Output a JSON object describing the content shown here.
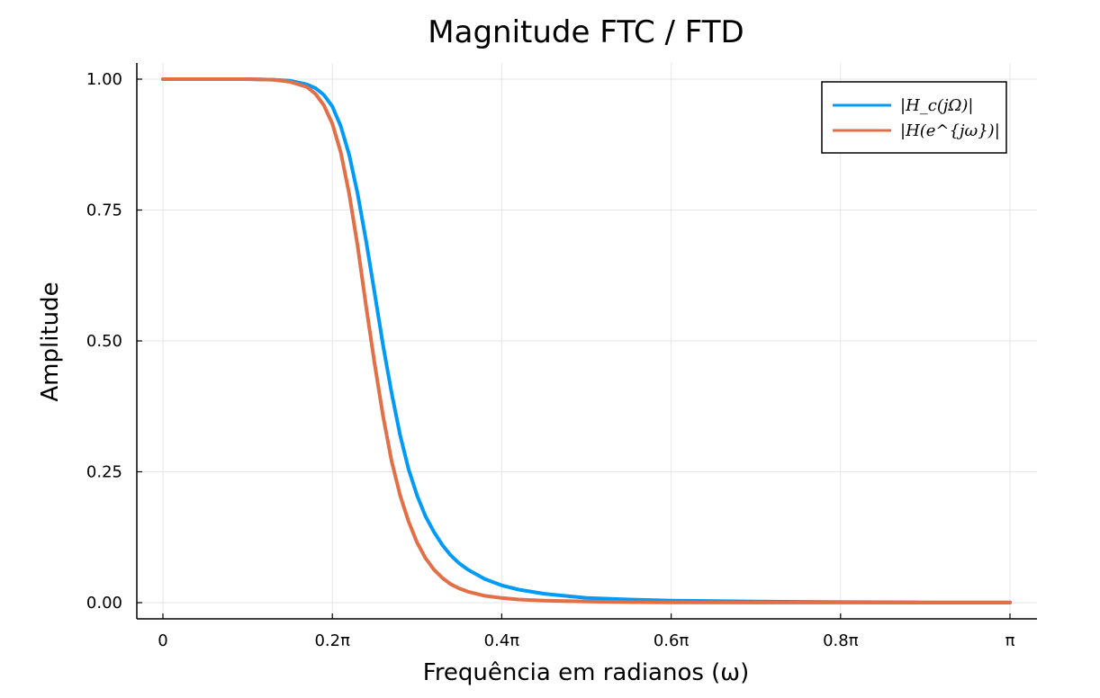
{
  "chart_data": {
    "type": "line",
    "title": "Magnitude FTC / FTD",
    "xlabel": "Frequência em radianos (ω)",
    "ylabel": "Amplitude",
    "x_unit": "π rad",
    "xlim": [
      0,
      1
    ],
    "ylim": [
      0,
      1
    ],
    "x_ticks": [
      0,
      0.2,
      0.4,
      0.6,
      0.8,
      1.0
    ],
    "x_tick_labels": [
      "0",
      "0.2π",
      "0.4π",
      "0.6π",
      "0.8π",
      "π"
    ],
    "y_ticks": [
      0,
      0.25,
      0.5,
      0.75,
      1.0
    ],
    "y_tick_labels": [
      "0.00",
      "0.25",
      "0.50",
      "0.75",
      "1.00"
    ],
    "grid": true,
    "legend_position": "top-right",
    "series": [
      {
        "name": "|H_c(jΩ)|",
        "color": "#009af9",
        "x": [
          0,
          0.05,
          0.1,
          0.13,
          0.15,
          0.17,
          0.18,
          0.19,
          0.2,
          0.21,
          0.22,
          0.23,
          0.24,
          0.25,
          0.26,
          0.27,
          0.28,
          0.29,
          0.3,
          0.31,
          0.32,
          0.33,
          0.34,
          0.35,
          0.36,
          0.38,
          0.4,
          0.42,
          0.45,
          0.5,
          0.55,
          0.6,
          0.7,
          0.8,
          0.9,
          1.0
        ],
        "y": [
          1.0,
          1.0,
          1.0,
          0.999,
          0.997,
          0.99,
          0.983,
          0.97,
          0.948,
          0.91,
          0.855,
          0.78,
          0.69,
          0.59,
          0.49,
          0.4,
          0.32,
          0.255,
          0.205,
          0.165,
          0.135,
          0.11,
          0.09,
          0.075,
          0.063,
          0.045,
          0.033,
          0.025,
          0.017,
          0.009,
          0.006,
          0.004,
          0.002,
          0.001,
          0.0005,
          0.0003
        ]
      },
      {
        "name": "|H(e^{jω})|",
        "color": "#e26f46",
        "x": [
          0,
          0.05,
          0.1,
          0.13,
          0.15,
          0.17,
          0.18,
          0.19,
          0.2,
          0.21,
          0.22,
          0.23,
          0.24,
          0.25,
          0.26,
          0.27,
          0.28,
          0.29,
          0.3,
          0.31,
          0.32,
          0.33,
          0.34,
          0.35,
          0.36,
          0.38,
          0.4,
          0.42,
          0.45,
          0.5,
          0.55,
          0.6,
          0.7,
          0.8,
          0.9,
          1.0
        ],
        "y": [
          1.0,
          1.0,
          1.0,
          0.999,
          0.995,
          0.985,
          0.972,
          0.95,
          0.915,
          0.86,
          0.78,
          0.68,
          0.565,
          0.455,
          0.355,
          0.27,
          0.205,
          0.155,
          0.115,
          0.085,
          0.063,
          0.047,
          0.035,
          0.027,
          0.021,
          0.013,
          0.009,
          0.006,
          0.004,
          0.002,
          0.001,
          0.0006,
          0.0002,
          0.0001,
          0.0,
          0.0
        ]
      }
    ]
  }
}
